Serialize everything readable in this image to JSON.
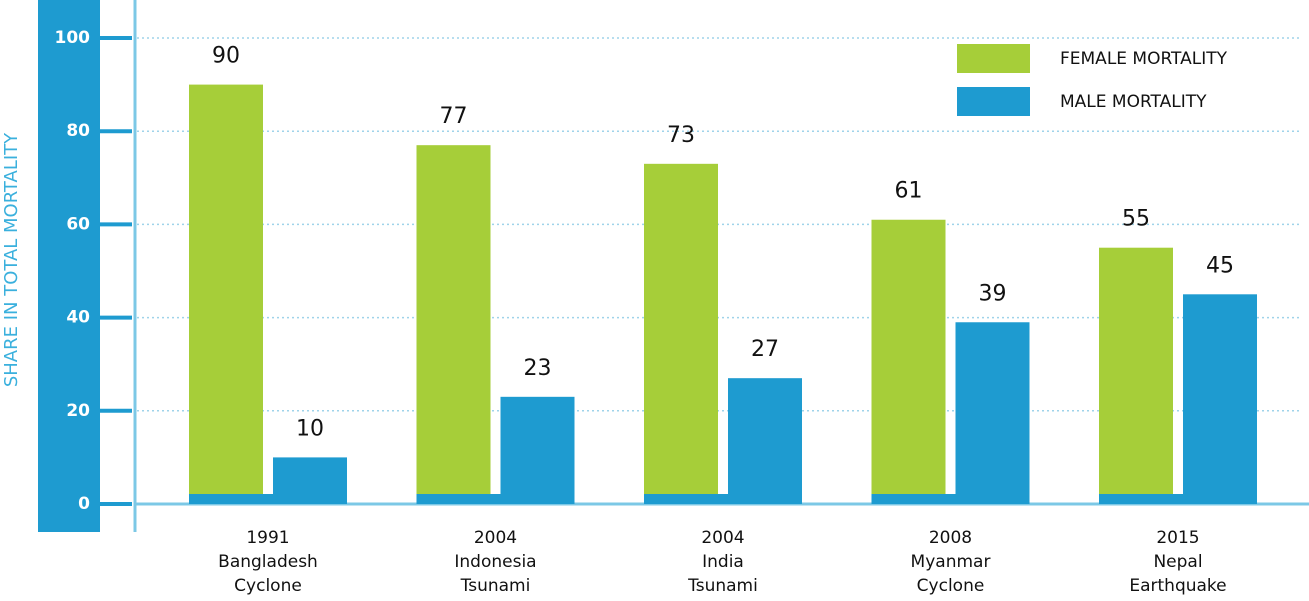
{
  "chart_data": {
    "type": "bar",
    "y_label": "SHARE IN TOTAL MORTALITY",
    "categories": [
      [
        "1991",
        "Bangladesh",
        "Cyclone"
      ],
      [
        "2004",
        "Indonesia",
        "Tsunami"
      ],
      [
        "2004",
        "India",
        "Tsunami"
      ],
      [
        "2008",
        "Myanmar",
        "Cyclone"
      ],
      [
        "2015",
        "Nepal",
        "Earthquake"
      ]
    ],
    "series": [
      {
        "name": "FEMALE MORTALITY",
        "color": "#a6ce39",
        "values": [
          90,
          77,
          73,
          61,
          55
        ]
      },
      {
        "name": "MALE MORTALITY",
        "color": "#1e9bd0",
        "values": [
          10,
          23,
          27,
          39,
          45
        ]
      }
    ],
    "ylim": [
      0,
      100
    ],
    "yticks": [
      0,
      20,
      40,
      60,
      80,
      100
    ],
    "grid": true,
    "legend": "top-right"
  }
}
